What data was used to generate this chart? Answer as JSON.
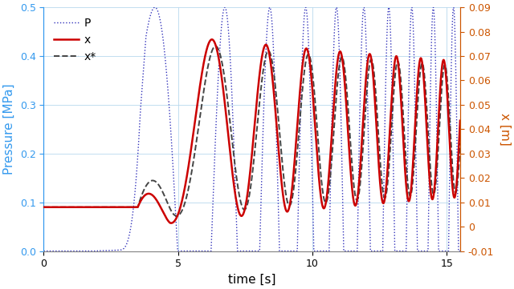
{
  "xlabel": "time [s]",
  "ylabel_left": "Pressure [MPa]",
  "ylabel_right": "x [m]",
  "xlim": [
    0,
    15.5
  ],
  "ylim_left": [
    0,
    0.5
  ],
  "ylim_right": [
    -0.01,
    0.09
  ],
  "yticks_left": [
    0.0,
    0.1,
    0.2,
    0.3,
    0.4,
    0.5
  ],
  "yticks_right": [
    -0.01,
    0.0,
    0.01,
    0.02,
    0.03,
    0.04,
    0.05,
    0.06,
    0.07,
    0.08,
    0.09
  ],
  "xticks": [
    0,
    5,
    10,
    15
  ],
  "color_pressure": "#3333bb",
  "color_x": "#cc0000",
  "color_xstar": "#444444",
  "color_left_axis": "#3399ee",
  "color_right_axis": "#cc5500",
  "legend_labels": [
    "P",
    "x",
    "x*"
  ],
  "figsize": [
    6.4,
    3.61
  ],
  "dpi": 100,
  "grid_color": "#b8d8ee",
  "background_color": "#ffffff"
}
